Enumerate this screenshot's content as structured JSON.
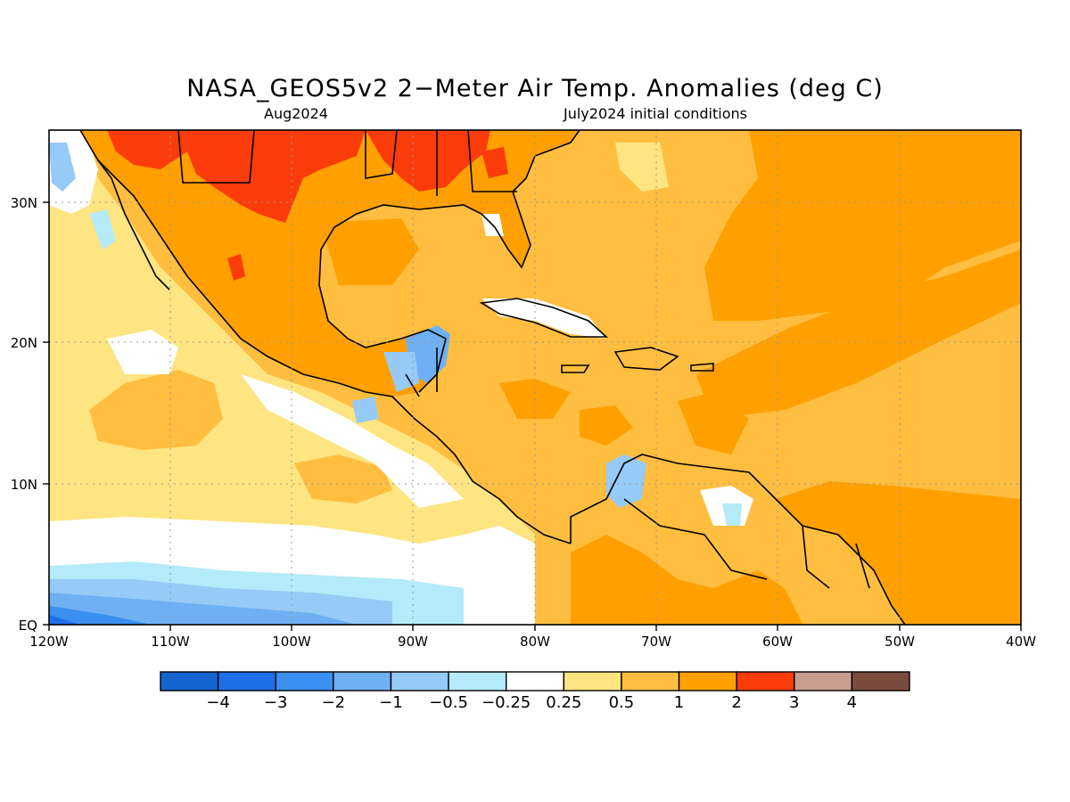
{
  "title": "NASA_GEOS5v2 2−Meter Air Temp. Anomalies (deg C)",
  "subtitle_left": "Aug2024",
  "subtitle_right": "July2024 initial conditions",
  "lat_labels": [
    "30N",
    "20N",
    "10N",
    "EQ"
  ],
  "lon_labels": [
    "120W",
    "110W",
    "100W",
    "90W",
    "80W",
    "70W",
    "60W",
    "50W",
    "40W"
  ],
  "colorbar": {
    "labels": [
      "−4",
      "−3",
      "−2",
      "−1",
      "−0.5",
      "−0.25",
      "0.25",
      "0.5",
      "1",
      "2",
      "3",
      "4"
    ],
    "colors": [
      "#1565d0",
      "#1e6ee8",
      "#3b8ff0",
      "#6eb0f2",
      "#96caf7",
      "#b4eafa",
      "#ffffff",
      "#ffe581",
      "#ffbe40",
      "#ffa000",
      "#fa3c0a",
      "#c89c8f",
      "#7a4b3f"
    ]
  },
  "land_color": "#ffa000",
  "ocean_base_color": "#ffbe40"
}
